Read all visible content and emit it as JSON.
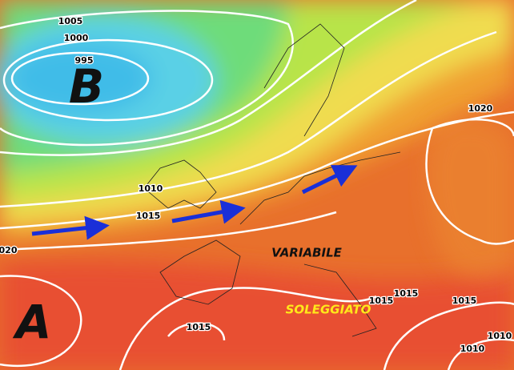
{
  "pressure_centers": [
    {
      "label": "B"
    },
    {
      "label": "A"
    }
  ],
  "isobar_labels": [
    {
      "label": "1005"
    },
    {
      "label": "1000"
    },
    {
      "label": "995"
    },
    {
      "label": "1020"
    },
    {
      "label": "1010"
    },
    {
      "label": "1015"
    },
    {
      "label": "020"
    },
    {
      "label": "1015"
    },
    {
      "label": "1015"
    },
    {
      "label": "1015"
    },
    {
      "label": "1015"
    },
    {
      "label": "1010"
    },
    {
      "label": "1010"
    }
  ],
  "annotations": [
    {
      "text": "VARIABILE"
    },
    {
      "text": "SOLEGGIATO"
    }
  ]
}
